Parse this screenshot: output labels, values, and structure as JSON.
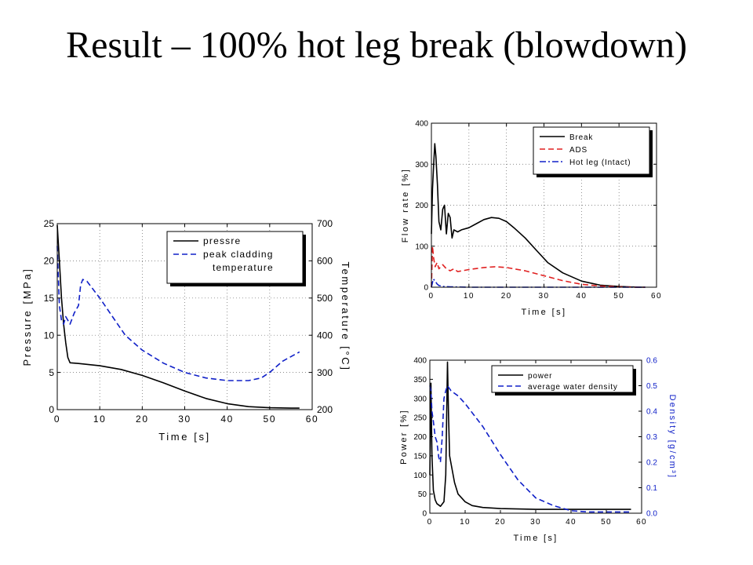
{
  "slide": {
    "title": "Result – 100% hot leg break (blowdown)"
  },
  "chart_data": [
    {
      "type": "line",
      "xlabel": "Time [s]",
      "ylabel": "Pressure [MPa]",
      "y2label": "Temperature [°C]",
      "xlim": [
        0,
        60
      ],
      "ylim": [
        0,
        25
      ],
      "y2lim": [
        200,
        700
      ],
      "xticks": [
        0,
        10,
        20,
        30,
        40,
        50,
        60
      ],
      "yticks": [
        0,
        5,
        10,
        15,
        20,
        25
      ],
      "y2ticks": [
        200,
        300,
        400,
        500,
        600,
        700
      ],
      "grid": true,
      "legend_position": "top-right",
      "series": [
        {
          "name": "pressre",
          "axis": "left",
          "color": "#000000",
          "dash": "solid",
          "x": [
            0,
            0.5,
            1,
            1.5,
            2,
            2.5,
            3,
            5,
            10,
            15,
            20,
            25,
            30,
            35,
            40,
            45,
            50,
            55,
            57
          ],
          "y": [
            24.8,
            20,
            15,
            11.5,
            9,
            7,
            6.3,
            6.2,
            5.9,
            5.4,
            4.6,
            3.6,
            2.5,
            1.5,
            0.8,
            0.4,
            0.25,
            0.2,
            0.2
          ]
        },
        {
          "name": "peak cladding temperature",
          "axis": "right",
          "color": "#1020c8",
          "dash": "dashed",
          "x": [
            0,
            0.5,
            1,
            1.5,
            2,
            3,
            4,
            5,
            5.5,
            6,
            7,
            8,
            10,
            13,
            16,
            20,
            25,
            30,
            35,
            40,
            45,
            48,
            50,
            53,
            57
          ],
          "y": [
            640,
            480,
            440,
            430,
            450,
            430,
            460,
            480,
            535,
            550,
            545,
            530,
            500,
            450,
            400,
            360,
            325,
            300,
            285,
            278,
            278,
            285,
            300,
            330,
            355
          ]
        }
      ]
    },
    {
      "type": "line",
      "xlabel": "Time [s]",
      "ylabel": "Flow rate [%]",
      "xlim": [
        0,
        60
      ],
      "ylim": [
        0,
        400
      ],
      "xticks": [
        0,
        10,
        20,
        30,
        40,
        50,
        60
      ],
      "yticks": [
        0,
        100,
        200,
        300,
        400
      ],
      "grid": true,
      "legend_position": "top-right",
      "series": [
        {
          "name": "Break",
          "color": "#000000",
          "dash": "solid",
          "x": [
            0,
            0.3,
            0.6,
            0.9,
            1.2,
            1.6,
            2,
            2.5,
            3,
            3.5,
            4,
            4.5,
            5,
            5.5,
            6,
            7,
            8,
            10,
            12,
            14,
            16,
            18,
            20,
            22,
            25,
            28,
            31,
            35,
            40,
            45,
            50,
            55,
            57
          ],
          "y": [
            130,
            240,
            300,
            350,
            320,
            250,
            160,
            140,
            190,
            200,
            130,
            180,
            170,
            120,
            140,
            135,
            140,
            145,
            155,
            165,
            170,
            168,
            160,
            145,
            120,
            90,
            60,
            35,
            15,
            5,
            2,
            0,
            0
          ]
        },
        {
          "name": "ADS",
          "color": "#e02020",
          "dash": "dashed",
          "x": [
            0,
            0.3,
            0.6,
            1,
            1.5,
            2,
            3,
            4,
            5,
            6,
            7,
            10,
            14,
            17,
            20,
            25,
            30,
            35,
            40,
            45,
            50,
            55,
            57
          ],
          "y": [
            0,
            100,
            70,
            50,
            60,
            45,
            55,
            45,
            40,
            45,
            38,
            43,
            48,
            50,
            48,
            40,
            28,
            16,
            7,
            3,
            1,
            0,
            0
          ]
        },
        {
          "name": "Hot leg (Intact)",
          "color": "#1020c8",
          "dash": "dashdot",
          "x": [
            0,
            0.5,
            1,
            1.5,
            2,
            3,
            5,
            10,
            20,
            30,
            40,
            50,
            57
          ],
          "y": [
            0,
            20,
            15,
            8,
            4,
            2,
            1,
            0,
            0,
            0,
            0,
            0,
            0
          ]
        }
      ]
    },
    {
      "type": "line",
      "xlabel": "Time [s]",
      "ylabel": "Power [%]",
      "y2label": "Density [g/cm³]",
      "xlim": [
        0,
        60
      ],
      "ylim": [
        0,
        400
      ],
      "y2lim": [
        0,
        0.6
      ],
      "xticks": [
        0,
        10,
        20,
        30,
        40,
        50,
        60
      ],
      "yticks": [
        0,
        50,
        100,
        150,
        200,
        250,
        300,
        350,
        400
      ],
      "y2ticks": [
        0.0,
        0.1,
        0.2,
        0.3,
        0.4,
        0.5,
        0.6
      ],
      "grid": false,
      "legend_position": "top-right",
      "series": [
        {
          "name": "power",
          "axis": "left",
          "color": "#000000",
          "dash": "solid",
          "x": [
            0,
            0.3,
            0.6,
            1,
            1.5,
            2,
            3,
            4,
            4.5,
            5,
            5.3,
            5.6,
            6,
            7,
            8,
            10,
            12,
            15,
            20,
            25,
            30,
            40,
            50,
            57
          ],
          "y": [
            100,
            340,
            150,
            60,
            35,
            25,
            18,
            30,
            100,
            395,
            250,
            150,
            130,
            80,
            50,
            30,
            20,
            15,
            12,
            11,
            10,
            10,
            10,
            10
          ]
        },
        {
          "name": "average water density",
          "axis": "right",
          "color": "#1020c8",
          "dash": "dashed",
          "x": [
            0,
            0.3,
            0.6,
            1,
            1.5,
            2,
            2.5,
            3,
            3.5,
            4,
            4.5,
            5,
            5.5,
            6,
            8,
            10,
            15,
            20,
            25,
            30,
            35,
            40,
            45,
            50,
            55,
            57
          ],
          "y": [
            0.5,
            0.48,
            0.4,
            0.36,
            0.3,
            0.28,
            0.22,
            0.2,
            0.3,
            0.45,
            0.48,
            0.5,
            0.49,
            0.48,
            0.46,
            0.43,
            0.34,
            0.23,
            0.13,
            0.06,
            0.03,
            0.01,
            0.005,
            0.005,
            0.005,
            0.005
          ]
        }
      ]
    }
  ]
}
